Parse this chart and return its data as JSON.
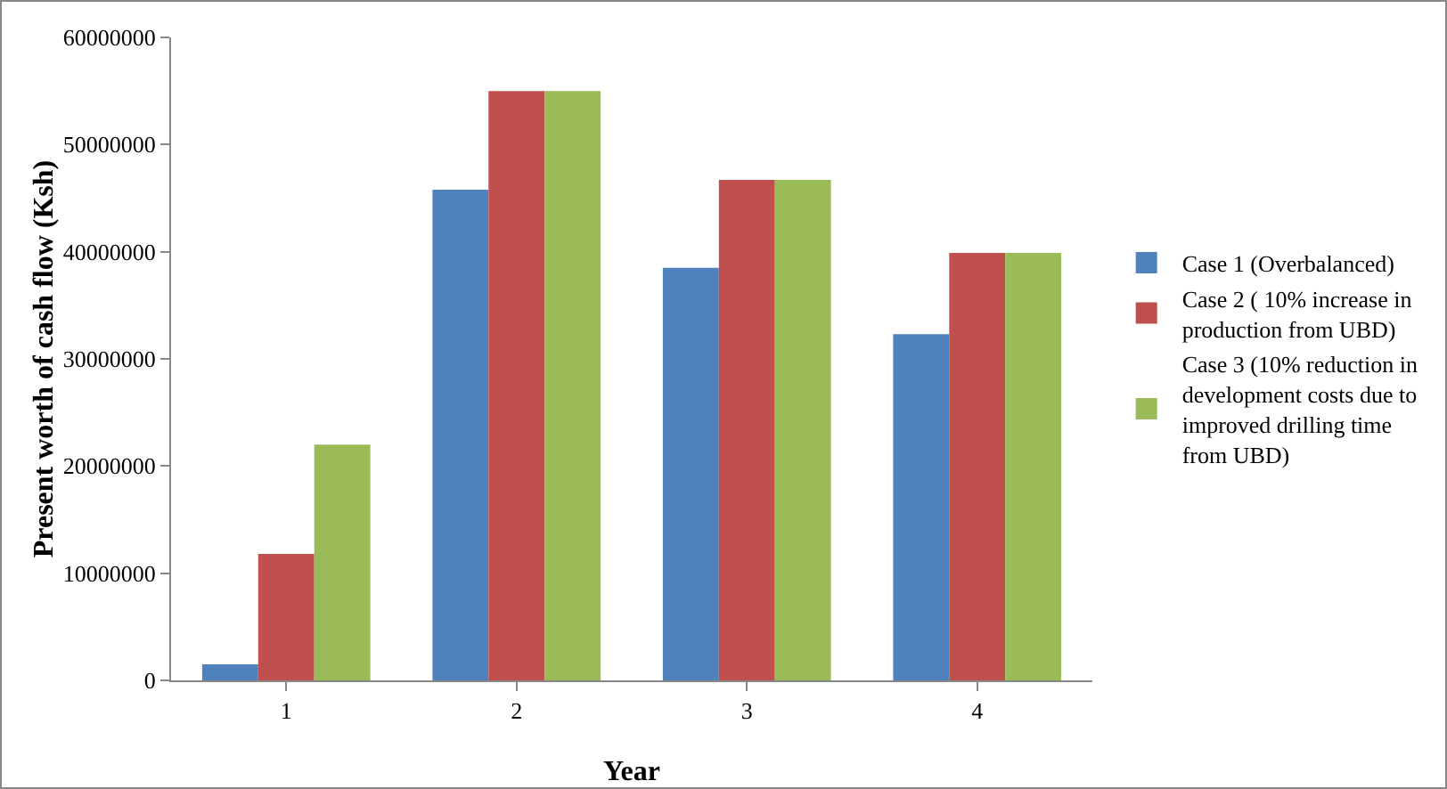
{
  "chart_data": {
    "type": "bar",
    "xlabel": "Year",
    "ylabel": "Present worth of cash flow (Ksh)",
    "categories": [
      "1",
      "2",
      "3",
      "4"
    ],
    "series": [
      {
        "name": "Case 1 (Overbalanced)",
        "color": "#4f81bd",
        "values": [
          1500000,
          45800000,
          38500000,
          32300000
        ]
      },
      {
        "name": "Case 2 ( 10% increase in production from UBD)",
        "color": "#c0504d",
        "values": [
          11800000,
          55000000,
          46700000,
          39900000
        ]
      },
      {
        "name": "Case 3 (10% reduction in development costs due to improved drilling time from UBD)",
        "color": "#9bbb59",
        "values": [
          22000000,
          55000000,
          46700000,
          39900000
        ]
      }
    ],
    "ylim": [
      0,
      60000000
    ],
    "yticks": [
      0,
      10000000,
      20000000,
      30000000,
      40000000,
      50000000,
      60000000
    ],
    "grid": false,
    "legend": "right"
  }
}
